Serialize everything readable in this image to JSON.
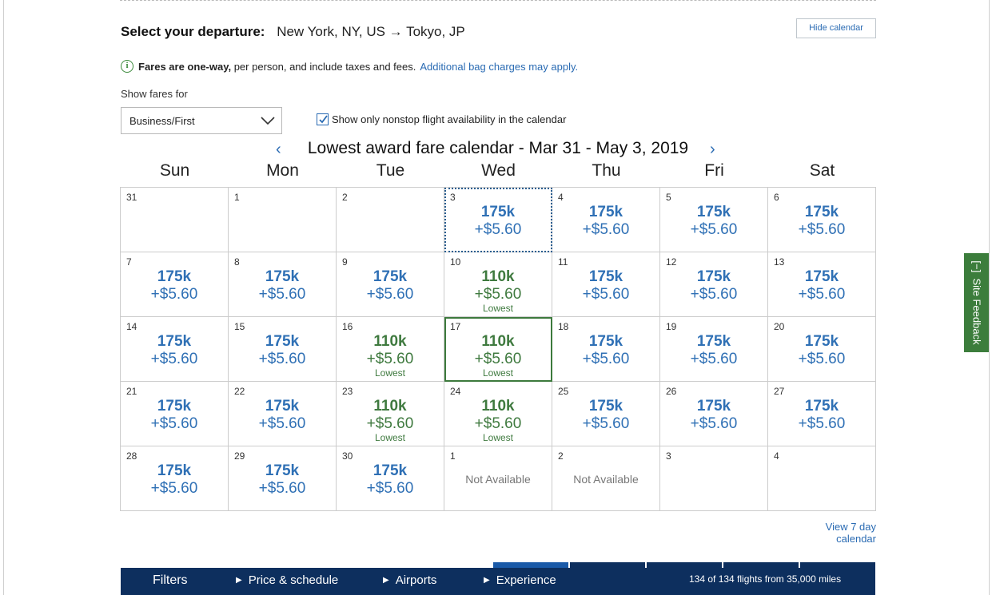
{
  "departure": {
    "label": "Select your departure:",
    "route": "New York, NY, US → Tokyo, JP"
  },
  "hide_calendar_label": "Hide calendar",
  "fares_note": {
    "bold": "Fares are one-way,",
    "text": " per person, and include taxes and fees.",
    "link": "Additional bag charges may apply."
  },
  "show_fares_label": "Show fares for",
  "cabin_select_value": "Business/First",
  "nonstop_checkbox_label": "Show only nonstop flight availability in the calendar",
  "nonstop_checked": true,
  "calendar_title": "Lowest award fare calendar - Mar 31 - May 3, 2019",
  "weekdays": [
    "Sun",
    "Mon",
    "Tue",
    "Wed",
    "Thu",
    "Fri",
    "Sat"
  ],
  "cells": [
    {
      "day": "31"
    },
    {
      "day": "1"
    },
    {
      "day": "2"
    },
    {
      "day": "3",
      "miles": "175k",
      "tax": "+$5.60",
      "selected": true
    },
    {
      "day": "4",
      "miles": "175k",
      "tax": "+$5.60"
    },
    {
      "day": "5",
      "miles": "175k",
      "tax": "+$5.60"
    },
    {
      "day": "6",
      "miles": "175k",
      "tax": "+$5.60"
    },
    {
      "day": "7",
      "miles": "175k",
      "tax": "+$5.60"
    },
    {
      "day": "8",
      "miles": "175k",
      "tax": "+$5.60"
    },
    {
      "day": "9",
      "miles": "175k",
      "tax": "+$5.60"
    },
    {
      "day": "10",
      "miles": "110k",
      "tax": "+$5.60",
      "lowest": "Lowest"
    },
    {
      "day": "11",
      "miles": "175k",
      "tax": "+$5.60"
    },
    {
      "day": "12",
      "miles": "175k",
      "tax": "+$5.60"
    },
    {
      "day": "13",
      "miles": "175k",
      "tax": "+$5.60"
    },
    {
      "day": "14",
      "miles": "175k",
      "tax": "+$5.60"
    },
    {
      "day": "15",
      "miles": "175k",
      "tax": "+$5.60"
    },
    {
      "day": "16",
      "miles": "110k",
      "tax": "+$5.60",
      "lowest": "Lowest"
    },
    {
      "day": "17",
      "miles": "110k",
      "tax": "+$5.60",
      "lowest": "Lowest",
      "today": true
    },
    {
      "day": "18",
      "miles": "175k",
      "tax": "+$5.60"
    },
    {
      "day": "19",
      "miles": "175k",
      "tax": "+$5.60"
    },
    {
      "day": "20",
      "miles": "175k",
      "tax": "+$5.60"
    },
    {
      "day": "21",
      "miles": "175k",
      "tax": "+$5.60"
    },
    {
      "day": "22",
      "miles": "175k",
      "tax": "+$5.60"
    },
    {
      "day": "23",
      "miles": "110k",
      "tax": "+$5.60",
      "lowest": "Lowest"
    },
    {
      "day": "24",
      "miles": "110k",
      "tax": "+$5.60",
      "lowest": "Lowest"
    },
    {
      "day": "25",
      "miles": "175k",
      "tax": "+$5.60"
    },
    {
      "day": "26",
      "miles": "175k",
      "tax": "+$5.60"
    },
    {
      "day": "27",
      "miles": "175k",
      "tax": "+$5.60"
    },
    {
      "day": "28",
      "miles": "175k",
      "tax": "+$5.60"
    },
    {
      "day": "29",
      "miles": "175k",
      "tax": "+$5.60"
    },
    {
      "day": "30",
      "miles": "175k",
      "tax": "+$5.60"
    },
    {
      "day": "1",
      "na": "Not Available"
    },
    {
      "day": "2",
      "na": "Not Available"
    },
    {
      "day": "3"
    },
    {
      "day": "4"
    }
  ],
  "view_7_day_label": "View 7 day calendar",
  "bottom_bar": {
    "filters": "Filters",
    "price_schedule": "Price & schedule",
    "airports": "Airports",
    "experience": "Experience",
    "count": "134 of 134 flights from 35,000 miles"
  },
  "site_feedback": "[−]  Site Feedback",
  "colors": {
    "fare_blue": "#2f70b5",
    "lowest_green": "#3f7a3f",
    "bar_navy": "#0d2f5e",
    "feedback_green": "#3c7d3c"
  },
  "icons": [
    "info-icon",
    "chevron-down-icon",
    "checkbox-check-icon",
    "chevron-left-icon",
    "chevron-right-icon",
    "triangle-right-icon"
  ]
}
